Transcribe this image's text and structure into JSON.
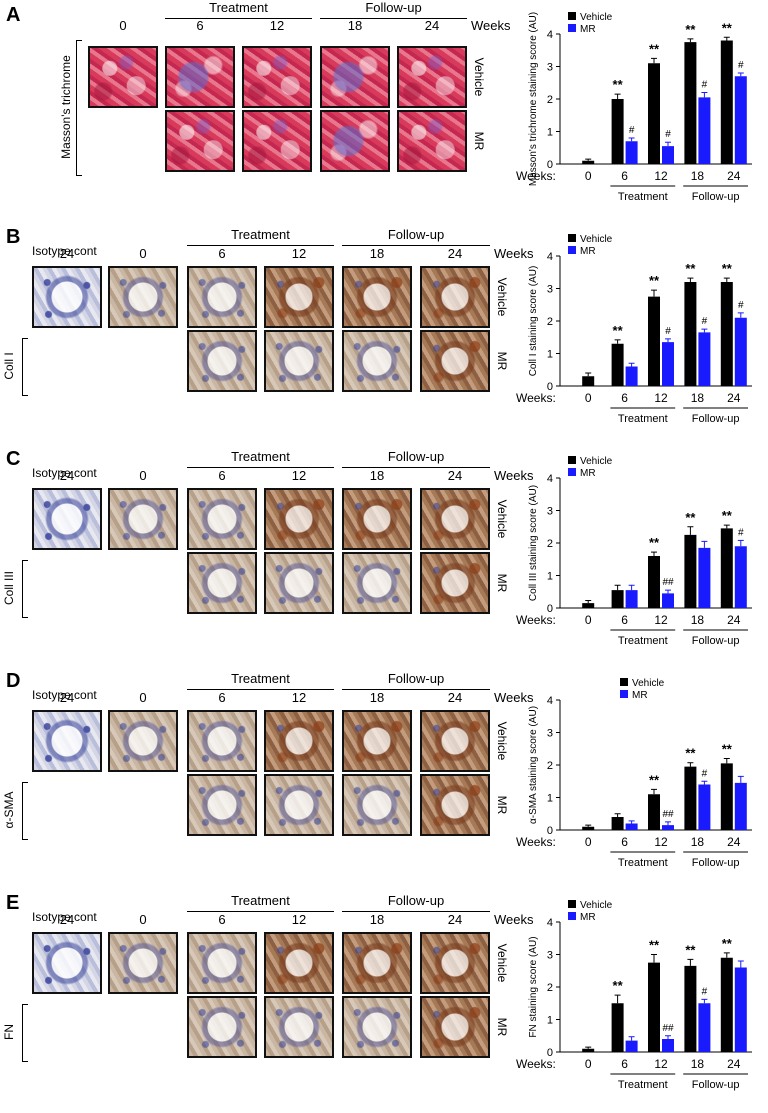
{
  "figure": {
    "weeks_label": "Weeks",
    "treatment_label": "Treatment",
    "followup_label": "Follow-up",
    "isotype_label": "Isotype cont",
    "vehicle_label": "Vehicle",
    "mr_label": "MR",
    "panels": [
      {
        "letter": "A",
        "stain": "Masson's trichrome",
        "has_isotype": false,
        "col_labels": [
          "0",
          "6",
          "12",
          "18",
          "24"
        ]
      },
      {
        "letter": "B",
        "stain": "Coll I",
        "has_isotype": true,
        "col_labels": [
          "24",
          "0",
          "6",
          "12",
          "18",
          "24"
        ]
      },
      {
        "letter": "C",
        "stain": "Coll III",
        "has_isotype": true,
        "col_labels": [
          "24",
          "0",
          "6",
          "12",
          "18",
          "24"
        ]
      },
      {
        "letter": "D",
        "stain": "α-SMA",
        "has_isotype": true,
        "col_labels": [
          "24",
          "0",
          "6",
          "12",
          "18",
          "24"
        ]
      },
      {
        "letter": "E",
        "stain": "FN",
        "has_isotype": true,
        "col_labels": [
          "24",
          "0",
          "6",
          "12",
          "18",
          "24"
        ]
      }
    ]
  },
  "chart_data": [
    {
      "type": "bar",
      "panel": "A",
      "ylabel": "Masson's trichrome staining score (AU)",
      "xlabel": "Weeks:",
      "categories": [
        "0",
        "6",
        "12",
        "18",
        "24"
      ],
      "ylim": [
        0,
        4
      ],
      "yticks": [
        "0",
        "1",
        "2",
        "3",
        "4"
      ],
      "series": [
        {
          "name": "Vehicle",
          "color": "#000000",
          "values": [
            0.1,
            2.0,
            3.1,
            3.75,
            3.8
          ],
          "errors": [
            0.05,
            0.15,
            0.15,
            0.1,
            0.1
          ],
          "marks": [
            "",
            "**",
            "**",
            "**",
            "**"
          ]
        },
        {
          "name": "MR",
          "color": "#1a1aff",
          "values": [
            null,
            0.7,
            0.55,
            2.05,
            2.7
          ],
          "errors": [
            null,
            0.1,
            0.12,
            0.15,
            0.1
          ],
          "marks": [
            "",
            "#",
            "#",
            "#",
            "#"
          ]
        }
      ],
      "groups": [
        {
          "label": "Treatment",
          "span": [
            "6",
            "12"
          ]
        },
        {
          "label": "Follow-up",
          "span": [
            "18",
            "24"
          ]
        }
      ],
      "legend": "top-left"
    },
    {
      "type": "bar",
      "panel": "B",
      "ylabel": "Coll I staining score (AU)",
      "xlabel": "Weeks:",
      "categories": [
        "0",
        "6",
        "12",
        "18",
        "24"
      ],
      "ylim": [
        0,
        4
      ],
      "yticks": [
        "0",
        "1",
        "2",
        "3",
        "4"
      ],
      "series": [
        {
          "name": "Vehicle",
          "color": "#000000",
          "values": [
            0.3,
            1.3,
            2.75,
            3.2,
            3.2
          ],
          "errors": [
            0.1,
            0.12,
            0.2,
            0.12,
            0.12
          ],
          "marks": [
            "",
            "**",
            "**",
            "**",
            "**"
          ]
        },
        {
          "name": "MR",
          "color": "#1a1aff",
          "values": [
            null,
            0.6,
            1.35,
            1.65,
            2.1
          ],
          "errors": [
            null,
            0.1,
            0.1,
            0.1,
            0.15
          ],
          "marks": [
            "",
            "",
            "#",
            "#",
            "#"
          ]
        }
      ],
      "groups": [
        {
          "label": "Treatment",
          "span": [
            "6",
            "12"
          ]
        },
        {
          "label": "Follow-up",
          "span": [
            "18",
            "24"
          ]
        }
      ],
      "legend": "top-left"
    },
    {
      "type": "bar",
      "panel": "C",
      "ylabel": "Coll III staining score (AU)",
      "xlabel": "Weeks:",
      "categories": [
        "0",
        "6",
        "12",
        "18",
        "24"
      ],
      "ylim": [
        0,
        4
      ],
      "yticks": [
        "0",
        "1",
        "2",
        "3",
        "4"
      ],
      "series": [
        {
          "name": "Vehicle",
          "color": "#000000",
          "values": [
            0.15,
            0.55,
            1.6,
            2.25,
            2.45
          ],
          "errors": [
            0.08,
            0.15,
            0.12,
            0.25,
            0.1
          ],
          "marks": [
            "",
            "",
            "**",
            "**",
            "**"
          ]
        },
        {
          "name": "MR",
          "color": "#1a1aff",
          "values": [
            null,
            0.55,
            0.45,
            1.85,
            1.9
          ],
          "errors": [
            null,
            0.15,
            0.1,
            0.2,
            0.18
          ],
          "marks": [
            "",
            "",
            "##",
            "",
            "#"
          ]
        }
      ],
      "groups": [
        {
          "label": "Treatment",
          "span": [
            "6",
            "12"
          ]
        },
        {
          "label": "Follow-up",
          "span": [
            "18",
            "24"
          ]
        }
      ],
      "legend": "top-left"
    },
    {
      "type": "bar",
      "panel": "D",
      "ylabel": "α-SMA staining score (AU)",
      "xlabel": "Weeks:",
      "categories": [
        "0",
        "6",
        "12",
        "18",
        "24"
      ],
      "ylim": [
        0,
        4
      ],
      "yticks": [
        "0",
        "1",
        "2",
        "3",
        "4"
      ],
      "series": [
        {
          "name": "Vehicle",
          "color": "#000000",
          "values": [
            0.1,
            0.4,
            1.1,
            1.95,
            2.05
          ],
          "errors": [
            0.05,
            0.1,
            0.15,
            0.12,
            0.15
          ],
          "marks": [
            "",
            "",
            "**",
            "**",
            "**"
          ]
        },
        {
          "name": "MR",
          "color": "#1a1aff",
          "values": [
            null,
            0.2,
            0.15,
            1.4,
            1.45
          ],
          "errors": [
            null,
            0.08,
            0.1,
            0.1,
            0.2
          ],
          "marks": [
            "",
            "",
            "##",
            "#",
            ""
          ]
        }
      ],
      "groups": [
        {
          "label": "Treatment",
          "span": [
            "6",
            "12"
          ]
        },
        {
          "label": "Follow-up",
          "span": [
            "18",
            "24"
          ]
        }
      ],
      "legend": "top-right"
    },
    {
      "type": "bar",
      "panel": "E",
      "ylabel": "FN staining score (AU)",
      "xlabel": "Weeks:",
      "categories": [
        "0",
        "6",
        "12",
        "18",
        "24"
      ],
      "ylim": [
        0,
        4
      ],
      "yticks": [
        "0",
        "1",
        "2",
        "3",
        "4"
      ],
      "series": [
        {
          "name": "Vehicle",
          "color": "#000000",
          "values": [
            0.1,
            1.5,
            2.75,
            2.65,
            2.9
          ],
          "errors": [
            0.05,
            0.25,
            0.25,
            0.2,
            0.15
          ],
          "marks": [
            "",
            "**",
            "**",
            "**",
            "**"
          ]
        },
        {
          "name": "MR",
          "color": "#1a1aff",
          "values": [
            null,
            0.35,
            0.4,
            1.5,
            2.6
          ],
          "errors": [
            null,
            0.12,
            0.1,
            0.12,
            0.2
          ],
          "marks": [
            "",
            "",
            "##",
            "#",
            ""
          ]
        }
      ],
      "groups": [
        {
          "label": "Treatment",
          "span": [
            "6",
            "12"
          ]
        },
        {
          "label": "Follow-up",
          "span": [
            "18",
            "24"
          ]
        }
      ],
      "legend": "top-left"
    }
  ]
}
